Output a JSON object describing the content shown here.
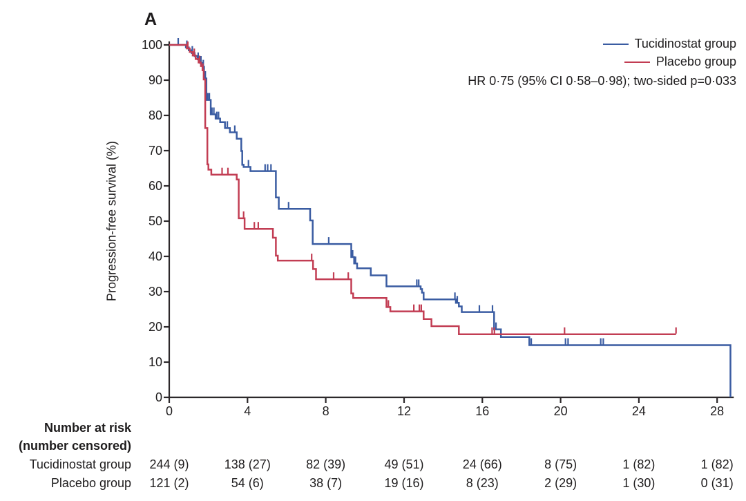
{
  "panel_label": "A",
  "chart_data": {
    "type": "line",
    "subtype": "kaplan-meier-step",
    "title": "A",
    "xlabel": "",
    "ylabel": "Progression-free survival (%)",
    "xlim": [
      0,
      29
    ],
    "ylim": [
      0,
      100
    ],
    "x_ticks": [
      0,
      4,
      8,
      12,
      16,
      20,
      24,
      28
    ],
    "y_ticks": [
      0,
      10,
      20,
      30,
      40,
      50,
      60,
      70,
      80,
      90,
      100
    ],
    "grid": false,
    "legend_position": "top-right",
    "annotation": "HR 0·75 (95% CI 0·58–0·98); two-sided p=0·033",
    "series": [
      {
        "name": "Tucidinostat group",
        "color": "#3a5ca2",
        "step_points": [
          [
            0,
            100
          ],
          [
            0.85,
            99.3
          ],
          [
            1.0,
            98.5
          ],
          [
            1.15,
            97.7
          ],
          [
            1.3,
            96.8
          ],
          [
            1.45,
            95.9
          ],
          [
            1.58,
            94.9
          ],
          [
            1.7,
            93.8
          ],
          [
            1.78,
            92.3
          ],
          [
            1.84,
            90.5
          ],
          [
            1.9,
            84.4
          ],
          [
            2.12,
            80.3
          ],
          [
            2.37,
            79.1
          ],
          [
            2.6,
            78.1
          ],
          [
            2.85,
            76.4
          ],
          [
            3.1,
            75.2
          ],
          [
            3.45,
            73.4
          ],
          [
            3.68,
            69.9
          ],
          [
            3.73,
            66.0
          ],
          [
            3.8,
            65.4
          ],
          [
            4.15,
            64.2
          ],
          [
            5.45,
            56.7
          ],
          [
            5.6,
            53.5
          ],
          [
            7.2,
            50.2
          ],
          [
            7.33,
            43.5
          ],
          [
            9.3,
            39.8
          ],
          [
            9.45,
            38.0
          ],
          [
            9.6,
            36.6
          ],
          [
            10.3,
            34.6
          ],
          [
            11.1,
            31.5
          ],
          [
            12.85,
            30.7
          ],
          [
            12.92,
            29.7
          ],
          [
            13.0,
            27.8
          ],
          [
            14.65,
            26.8
          ],
          [
            14.8,
            25.8
          ],
          [
            14.95,
            24.2
          ],
          [
            16.6,
            19.3
          ],
          [
            16.95,
            17.1
          ],
          [
            18.4,
            14.8
          ],
          [
            28.68,
            14.8
          ],
          [
            28.68,
            0
          ]
        ],
        "censor_marks": [
          [
            0.46,
            100
          ],
          [
            0.9,
            99.3
          ],
          [
            1.18,
            97.7
          ],
          [
            1.48,
            95.9
          ],
          [
            1.62,
            94.9
          ],
          [
            1.74,
            93.8
          ],
          [
            1.97,
            84.4
          ],
          [
            2.05,
            84.4
          ],
          [
            2.18,
            80.3
          ],
          [
            2.28,
            80.3
          ],
          [
            2.43,
            79.1
          ],
          [
            2.52,
            79.1
          ],
          [
            2.97,
            76.4
          ],
          [
            3.35,
            75.2
          ],
          [
            4.05,
            65.4
          ],
          [
            4.9,
            64.2
          ],
          [
            5.03,
            64.2
          ],
          [
            5.2,
            64.2
          ],
          [
            6.1,
            53.5
          ],
          [
            8.15,
            43.5
          ],
          [
            9.37,
            39.8
          ],
          [
            9.52,
            38.0
          ],
          [
            12.65,
            31.5
          ],
          [
            12.75,
            31.5
          ],
          [
            14.6,
            27.8
          ],
          [
            14.72,
            26.8
          ],
          [
            15.85,
            24.2
          ],
          [
            16.52,
            24.2
          ],
          [
            16.7,
            19.3
          ],
          [
            18.5,
            14.8
          ],
          [
            20.25,
            14.8
          ],
          [
            20.38,
            14.8
          ],
          [
            22.05,
            14.8
          ],
          [
            22.18,
            14.8
          ]
        ]
      },
      {
        "name": "Placebo group",
        "color": "#c23d53",
        "step_points": [
          [
            0,
            100
          ],
          [
            0.9,
            99.0
          ],
          [
            1.05,
            98.0
          ],
          [
            1.2,
            97.0
          ],
          [
            1.35,
            96.0
          ],
          [
            1.5,
            95.0
          ],
          [
            1.62,
            94.0
          ],
          [
            1.7,
            92.8
          ],
          [
            1.76,
            90.2
          ],
          [
            1.84,
            76.4
          ],
          [
            1.95,
            66.1
          ],
          [
            2.0,
            64.6
          ],
          [
            2.15,
            63.2
          ],
          [
            3.45,
            61.8
          ],
          [
            3.55,
            50.8
          ],
          [
            3.85,
            47.8
          ],
          [
            5.3,
            45.3
          ],
          [
            5.45,
            40.2
          ],
          [
            5.55,
            38.8
          ],
          [
            7.35,
            36.4
          ],
          [
            7.5,
            33.5
          ],
          [
            9.3,
            29.5
          ],
          [
            9.4,
            28.2
          ],
          [
            11.1,
            25.6
          ],
          [
            11.3,
            24.4
          ],
          [
            13.0,
            22.2
          ],
          [
            13.4,
            20.2
          ],
          [
            14.8,
            17.9
          ],
          [
            25.9,
            17.9
          ]
        ],
        "censor_marks": [
          [
            0.95,
            99.0
          ],
          [
            1.28,
            97.0
          ],
          [
            1.55,
            95.0
          ],
          [
            1.72,
            92.8
          ],
          [
            2.7,
            63.2
          ],
          [
            3.0,
            63.2
          ],
          [
            3.8,
            50.8
          ],
          [
            4.35,
            47.8
          ],
          [
            4.55,
            47.8
          ],
          [
            7.28,
            38.8
          ],
          [
            8.4,
            33.5
          ],
          [
            9.15,
            33.5
          ],
          [
            11.2,
            25.6
          ],
          [
            12.5,
            24.4
          ],
          [
            12.78,
            24.4
          ],
          [
            12.88,
            24.4
          ],
          [
            16.5,
            17.9
          ],
          [
            16.62,
            17.9
          ],
          [
            20.2,
            17.9
          ],
          [
            25.9,
            17.9
          ]
        ]
      }
    ]
  },
  "risk_table": {
    "header_line1": "Number at risk",
    "header_line2": "(number censored)",
    "rows": [
      {
        "label": "Tucidinostat group",
        "values": [
          "244 (9)",
          "138 (27)",
          "82 (39)",
          "49 (51)",
          "24 (66)",
          "8 (75)",
          "1 (82)",
          "1 (82)"
        ]
      },
      {
        "label": "Placebo group",
        "values": [
          "121 (2)",
          "54 (6)",
          "38 (7)",
          "19 (16)",
          "8 (23)",
          "2 (29)",
          "1 (30)",
          "0 (31)"
        ]
      }
    ]
  },
  "colors": {
    "axis": "#2c282a",
    "text": "#1e1c1d",
    "tucidinostat_blue": "#3a5ca2",
    "placebo_red": "#c23d53"
  }
}
